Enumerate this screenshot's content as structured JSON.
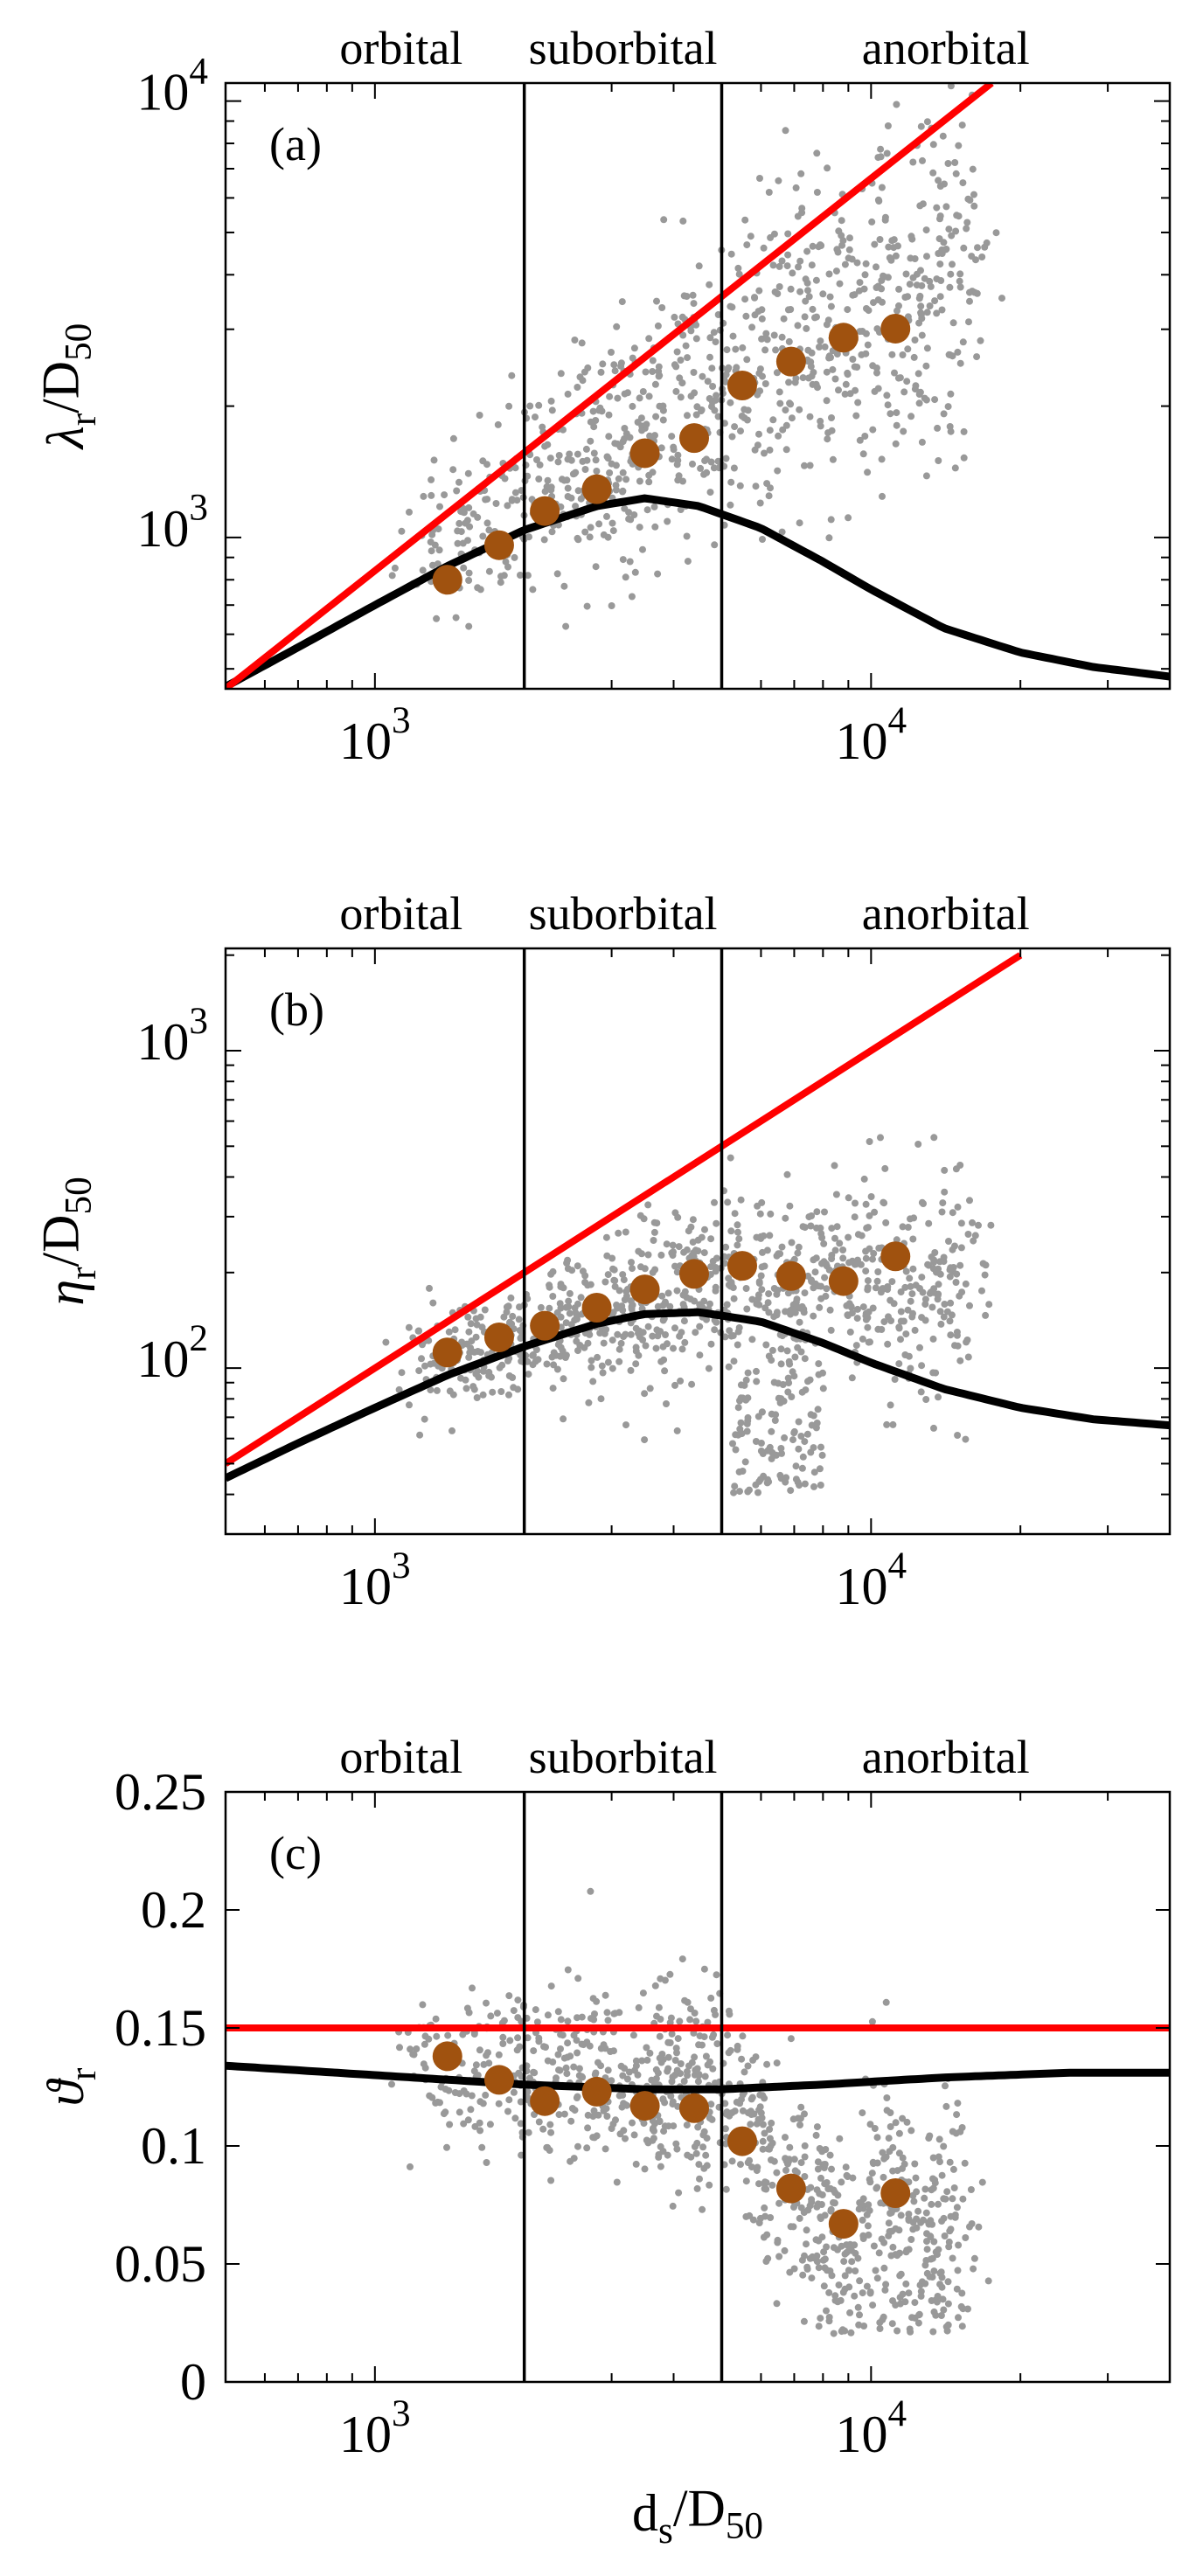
{
  "chart_data": [
    {
      "type": "scatter",
      "panel": "(a)",
      "xscale": "log",
      "yscale": "log",
      "xlim": [
        500,
        40000
      ],
      "ylim": [
        450,
        11000
      ],
      "xlabel": "",
      "ylabel": {
        "base": "λ",
        "sub": "r",
        "rest": "/D",
        "sub2": "50"
      },
      "x_ticks": [
        {
          "value": 1000,
          "base": "10",
          "exp": "3"
        },
        {
          "value": 10000,
          "base": "10",
          "exp": "4"
        }
      ],
      "y_ticks": [
        {
          "value": 1000,
          "base": "10",
          "exp": "3"
        },
        {
          "value": 10000,
          "base": "10",
          "exp": "4"
        }
      ],
      "regions": {
        "labels": [
          "orbital",
          "suborbital",
          "anorbital"
        ],
        "boundaries": [
          2000,
          5000
        ]
      },
      "series": [
        {
          "name": "observations (grey)",
          "color": "#999999",
          "seed": 11,
          "cloud": {
            "x_range": [
              1200,
              16000
            ],
            "trend": {
              "base": [
                1000,
                830
              ],
              "slope": 0.62,
              "bend_at": 5000,
              "slope_after": 0.55
            },
            "spread_dex": 0.16,
            "count": 900
          }
        },
        {
          "name": "bin means",
          "color": "#a0520f",
          "x": [
            1400,
            1780,
            2200,
            2800,
            3500,
            4400,
            5500,
            6900,
            8800,
            11200
          ],
          "y": [
            800,
            960,
            1150,
            1290,
            1560,
            1690,
            2230,
            2530,
            2870,
            3010
          ]
        },
        {
          "name": "upper bound",
          "color": "#ff0000",
          "type": "line",
          "x": [
            500,
            17500
          ],
          "y": [
            450,
            11000
          ]
        },
        {
          "name": "model",
          "color": "#000000",
          "type": "curve",
          "x": [
            500,
            700,
            1000,
            1400,
            2000,
            2800,
            3500,
            4500,
            6000,
            8000,
            10000,
            14000,
            20000,
            28000,
            40000
          ],
          "y": [
            455,
            560,
            700,
            860,
            1040,
            1180,
            1230,
            1180,
            1050,
            880,
            760,
            620,
            545,
            505,
            480
          ]
        }
      ]
    },
    {
      "type": "scatter",
      "panel": "(b)",
      "xscale": "log",
      "yscale": "log",
      "xlim": [
        500,
        40000
      ],
      "ylim": [
        30,
        2100
      ],
      "xlabel": "",
      "ylabel": {
        "base": "η",
        "sub": "r",
        "rest": "/D",
        "sub2": "50"
      },
      "x_ticks": [
        {
          "value": 1000,
          "base": "10",
          "exp": "3"
        },
        {
          "value": 10000,
          "base": "10",
          "exp": "4"
        }
      ],
      "y_ticks": [
        {
          "value": 100,
          "base": "10",
          "exp": "2"
        },
        {
          "value": 1000,
          "base": "10",
          "exp": "3"
        }
      ],
      "regions": {
        "labels": [
          "orbital",
          "suborbital",
          "anorbital"
        ],
        "boundaries": [
          2000,
          5000
        ]
      },
      "series": [
        {
          "name": "observations (grey)",
          "color": "#999999",
          "seed": 22,
          "cloud": {
            "x_range": [
              1200,
              16000
            ],
            "trend": {
              "base": [
                1000,
                95
              ],
              "slope": 0.42,
              "bend_at": 5000,
              "slope_after": 0.02
            },
            "spread_dex": 0.13,
            "count": 900,
            "tail": {
              "x_range": [
                5200,
                8000
              ],
              "y_range": [
                40,
                120
              ],
              "count": 120
            }
          }
        },
        {
          "name": "bin means",
          "color": "#a0520f",
          "x": [
            1400,
            1780,
            2200,
            2800,
            3500,
            4400,
            5500,
            6900,
            8800,
            11200
          ],
          "y": [
            112,
            125,
            136,
            155,
            177,
            198,
            210,
            195,
            188,
            225
          ]
        },
        {
          "name": "upper bound",
          "color": "#ff0000",
          "type": "line",
          "x": [
            500,
            20000
          ],
          "y": [
            50,
            2000
          ]
        },
        {
          "name": "model",
          "color": "#000000",
          "type": "curve",
          "x": [
            500,
            700,
            1000,
            1400,
            2000,
            2800,
            3500,
            4500,
            6000,
            8000,
            10000,
            14000,
            20000,
            28000,
            40000
          ],
          "y": [
            45,
            58,
            75,
            95,
            117,
            138,
            148,
            150,
            140,
            120,
            104,
            86,
            75,
            69,
            66
          ]
        }
      ]
    },
    {
      "type": "scatter",
      "panel": "(c)",
      "xscale": "log",
      "yscale": "linear",
      "xlim": [
        500,
        40000
      ],
      "ylim": [
        0,
        0.25
      ],
      "xlabel": {
        "base": "d",
        "sub": "s",
        "rest": "/D",
        "sub2": "50"
      },
      "ylabel": {
        "base": "ϑ",
        "sub": "r",
        "rest": "",
        "sub2": ""
      },
      "x_ticks": [
        {
          "value": 1000,
          "base": "10",
          "exp": "3"
        },
        {
          "value": 10000,
          "base": "10",
          "exp": "4"
        }
      ],
      "y_ticks": [
        {
          "value": 0,
          "label": "0"
        },
        {
          "value": 0.05,
          "label": "0.05"
        },
        {
          "value": 0.1,
          "label": "0.1"
        },
        {
          "value": 0.15,
          "label": "0.15"
        },
        {
          "value": 0.2,
          "label": "0.2"
        },
        {
          "value": 0.25,
          "label": "0.25"
        }
      ],
      "regions": {
        "labels": [
          "orbital",
          "suborbital",
          "anorbital"
        ],
        "boundaries": [
          2000,
          5000
        ]
      },
      "series": [
        {
          "name": "observations (grey)",
          "color": "#999999",
          "seed": 33,
          "cloud": {
            "x_range": [
              1200,
              16000
            ],
            "linear_trend": [
              [
                1200,
                0.135
              ],
              [
                5000,
                0.12
              ],
              [
                8000,
                0.065
              ],
              [
                16000,
                0.065
              ]
            ],
            "spread": 0.022,
            "count": 1000
          }
        },
        {
          "name": "bin means",
          "color": "#a0520f",
          "x": [
            1400,
            1780,
            2200,
            2800,
            3500,
            4400,
            5500,
            6900,
            8800,
            11200
          ],
          "y": [
            0.138,
            0.128,
            0.119,
            0.123,
            0.117,
            0.116,
            0.102,
            0.082,
            0.067,
            0.08
          ]
        },
        {
          "name": "upper bound",
          "color": "#ff0000",
          "type": "line",
          "x": [
            500,
            40000
          ],
          "y": [
            0.15,
            0.15
          ]
        },
        {
          "name": "model",
          "color": "#000000",
          "type": "curve",
          "x": [
            500,
            1000,
            2000,
            3500,
            5000,
            8000,
            14000,
            25000,
            40000
          ],
          "y": [
            0.134,
            0.13,
            0.126,
            0.124,
            0.124,
            0.126,
            0.129,
            0.131,
            0.131
          ]
        }
      ]
    }
  ]
}
